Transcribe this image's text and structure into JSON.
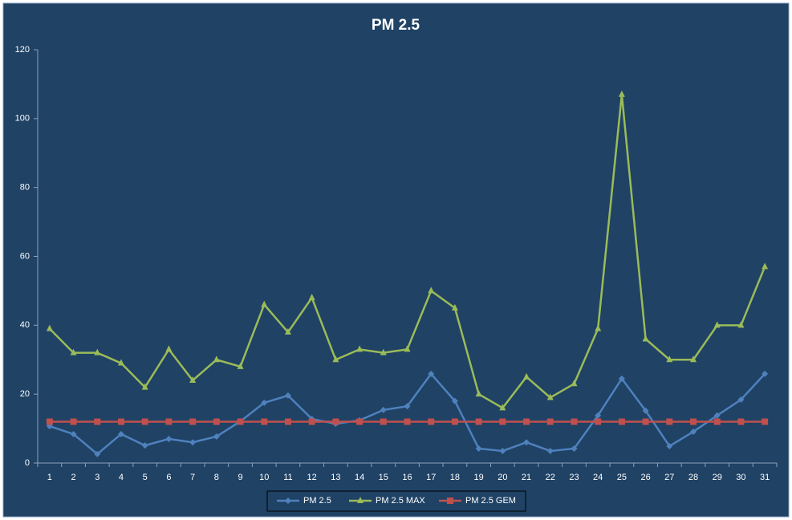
{
  "chart_data": {
    "type": "line",
    "title": "PM 2.5",
    "categories": [
      "1",
      "2",
      "3",
      "4",
      "5",
      "6",
      "7",
      "8",
      "9",
      "10",
      "11",
      "12",
      "13",
      "14",
      "15",
      "16",
      "17",
      "18",
      "19",
      "20",
      "21",
      "22",
      "23",
      "24",
      "25",
      "26",
      "27",
      "28",
      "29",
      "30",
      "31"
    ],
    "series": [
      {
        "name": "PM 2.5",
        "color": "#4f81bd",
        "marker": "diamond",
        "values": [
          10.7,
          8.4,
          2.6,
          8.4,
          5.1,
          7,
          6,
          7.7,
          12.1,
          17.5,
          19.6,
          12.8,
          11.4,
          12.4,
          15.4,
          16.5,
          25.9,
          18,
          4.2,
          3.5,
          6,
          3.5,
          4.2,
          13.8,
          24.5,
          15.2,
          4.9,
          9.1,
          13.8,
          18.4,
          25.9
        ]
      },
      {
        "name": "PM 2.5 MAX",
        "color": "#9bbb59",
        "marker": "triangle",
        "values": [
          39,
          32,
          32,
          29,
          22,
          33,
          24,
          30,
          28,
          46,
          38,
          48,
          30,
          33,
          32,
          33,
          50,
          45,
          20,
          16,
          25,
          19,
          23,
          39,
          107,
          36,
          30,
          30,
          40,
          40,
          57
        ]
      },
      {
        "name": "PM 2.5 GEM",
        "color": "#c0504d",
        "marker": "square",
        "values": [
          12,
          12,
          12,
          12,
          12,
          12,
          12,
          12,
          12,
          12,
          12,
          12,
          12,
          12,
          12,
          12,
          12,
          12,
          12,
          12,
          12,
          12,
          12,
          12,
          12,
          12,
          12,
          12,
          12,
          12,
          12
        ]
      }
    ],
    "ylim": [
      0,
      120
    ],
    "yticks": [
      0,
      20,
      40,
      60,
      80,
      100,
      120
    ],
    "grid": false,
    "legend": "bottom"
  }
}
